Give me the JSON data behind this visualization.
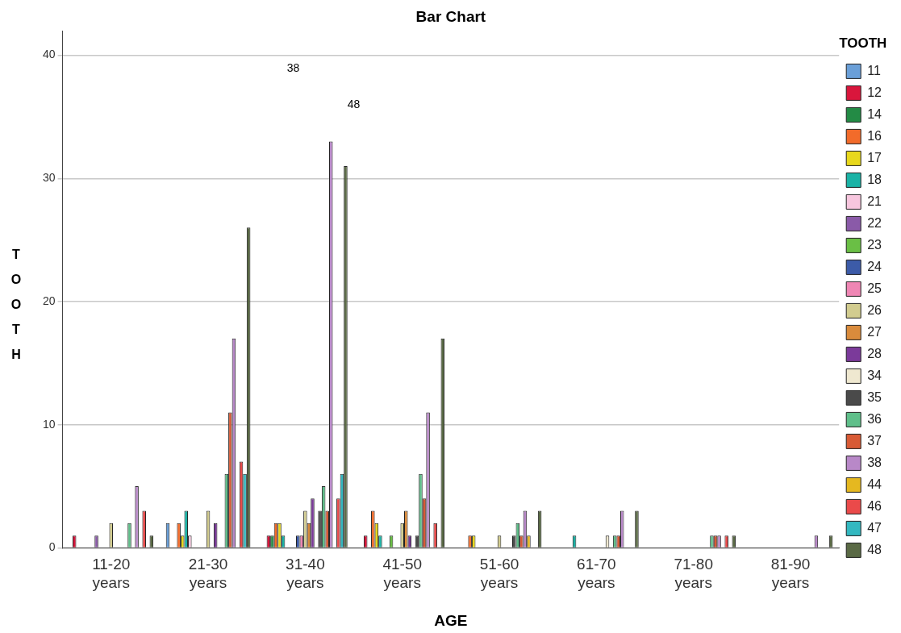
{
  "chart_data": {
    "type": "bar",
    "title": "Bar Chart",
    "xlabel": "AGE",
    "ylabel": "TOOTH",
    "legend_title": "TOOTH",
    "categories": [
      "11-20 years",
      "21-30 years",
      "31-40 years",
      "41-50 years",
      "51-60 years",
      "61-70 years",
      "71-80 years",
      "81-90 years"
    ],
    "series": [
      {
        "name": "11",
        "color": "#6a9fd8",
        "values": [
          null,
          2,
          null,
          null,
          null,
          null,
          null,
          null
        ]
      },
      {
        "name": "12",
        "color": "#d9163c",
        "values": [
          1,
          null,
          1,
          1,
          null,
          null,
          null,
          null
        ]
      },
      {
        "name": "14",
        "color": "#238b45",
        "values": [
          null,
          null,
          1,
          null,
          null,
          null,
          null,
          null
        ]
      },
      {
        "name": "16",
        "color": "#f26b2a",
        "values": [
          null,
          2,
          2,
          3,
          1,
          null,
          null,
          null
        ]
      },
      {
        "name": "17",
        "color": "#e8d81c",
        "values": [
          null,
          1,
          2,
          2,
          1,
          null,
          null,
          null
        ]
      },
      {
        "name": "18",
        "color": "#1ab3a6",
        "values": [
          null,
          3,
          1,
          1,
          null,
          1,
          null,
          null
        ]
      },
      {
        "name": "21",
        "color": "#f7c6de",
        "values": [
          null,
          1,
          null,
          null,
          null,
          null,
          null,
          null
        ]
      },
      {
        "name": "22",
        "color": "#8a5aa8",
        "values": [
          1,
          null,
          null,
          null,
          null,
          null,
          null,
          null
        ]
      },
      {
        "name": "23",
        "color": "#6abf45",
        "values": [
          null,
          null,
          null,
          1,
          null,
          null,
          null,
          null
        ]
      },
      {
        "name": "24",
        "color": "#3c5ba8",
        "values": [
          null,
          null,
          1,
          null,
          null,
          null,
          null,
          null
        ]
      },
      {
        "name": "25",
        "color": "#ef86b4",
        "values": [
          null,
          null,
          1,
          null,
          null,
          null,
          null,
          null
        ]
      },
      {
        "name": "26",
        "color": "#d2cc8f",
        "values": [
          2,
          3,
          3,
          2,
          1,
          null,
          null,
          null
        ]
      },
      {
        "name": "27",
        "color": "#d98b3c",
        "values": [
          null,
          null,
          2,
          3,
          null,
          null,
          null,
          null
        ]
      },
      {
        "name": "28",
        "color": "#7b3a9a",
        "values": [
          null,
          2,
          4,
          1,
          null,
          null,
          null,
          null
        ]
      },
      {
        "name": "34",
        "color": "#efe8d0",
        "values": [
          null,
          null,
          null,
          null,
          null,
          1,
          null,
          null
        ]
      },
      {
        "name": "35",
        "color": "#4a4a4a",
        "values": [
          null,
          null,
          3,
          1,
          1,
          null,
          null,
          null
        ]
      },
      {
        "name": "36",
        "color": "#5fbf8a",
        "values": [
          2,
          6,
          5,
          6,
          2,
          1,
          1,
          null
        ]
      },
      {
        "name": "37",
        "color": "#d85a35",
        "values": [
          null,
          11,
          3,
          4,
          1,
          1,
          1,
          null
        ]
      },
      {
        "name": "38",
        "color": "#b888c8",
        "values": [
          5,
          17,
          33,
          11,
          3,
          3,
          1,
          1
        ]
      },
      {
        "name": "44",
        "color": "#e5b820",
        "values": [
          null,
          null,
          null,
          null,
          1,
          null,
          null,
          null
        ]
      },
      {
        "name": "46",
        "color": "#ea4a4a",
        "values": [
          3,
          7,
          4,
          2,
          null,
          null,
          1,
          null
        ]
      },
      {
        "name": "47",
        "color": "#33b8c0",
        "values": [
          null,
          6,
          6,
          null,
          null,
          null,
          null,
          null
        ]
      },
      {
        "name": "48",
        "color": "#5a6a45",
        "values": [
          1,
          26,
          31,
          17,
          3,
          3,
          1,
          1
        ]
      }
    ],
    "ylim": [
      0,
      42
    ],
    "yticks": [
      0,
      10,
      20,
      30,
      40
    ],
    "grid": "y",
    "legend": "right",
    "annotations": [
      "38",
      "48"
    ]
  }
}
